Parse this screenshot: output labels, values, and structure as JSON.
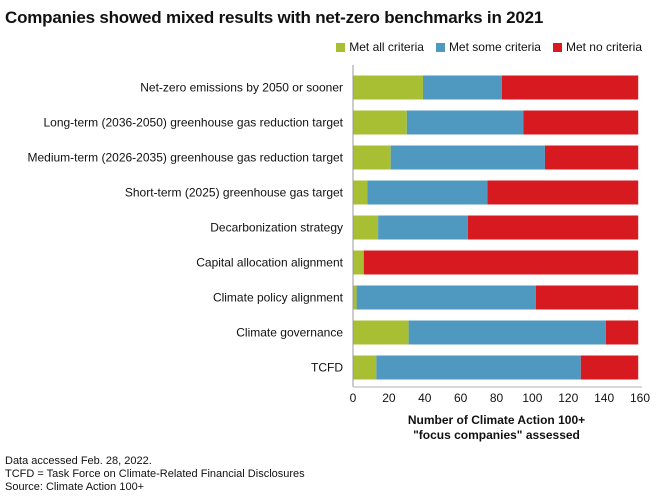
{
  "chart_data": {
    "type": "bar",
    "orientation": "horizontal",
    "stacked": true,
    "title": "Companies showed mixed results with net-zero benchmarks in 2021",
    "categories": [
      "Net-zero emissions by 2050 or sooner",
      "Long-term (2036-2050) greenhouse gas reduction target",
      "Medium-term (2026-2035) greenhouse gas reduction target",
      "Short-term (2025) greenhouse gas target",
      "Decarbonization strategy",
      "Capital allocation alignment",
      "Climate policy alignment",
      "Climate governance",
      "TCFD"
    ],
    "series": [
      {
        "name": "Met all criteria",
        "color": "#a8bf33",
        "values": [
          39,
          30,
          21,
          8,
          14,
          6,
          2,
          31,
          13
        ]
      },
      {
        "name": "Met some criteria",
        "color": "#4f99c1",
        "values": [
          44,
          65,
          86,
          67,
          50,
          0,
          100,
          110,
          114
        ]
      },
      {
        "name": "Met no criteria",
        "color": "#d71920",
        "values": [
          76,
          64,
          52,
          84,
          95,
          153,
          57,
          18,
          32
        ]
      }
    ],
    "xlabel": [
      "Number of Climate Action 100+",
      "\"focus companies\" assessed"
    ],
    "xlim": [
      0,
      160
    ],
    "xticks": [
      0,
      20,
      40,
      60,
      80,
      100,
      120,
      140,
      160
    ],
    "legend_position": "top-right",
    "grid": false
  },
  "notes": [
    "Data accessed Feb. 28, 2022.",
    "TCFD = Task Force on Climate-Related Financial Disclosures",
    "Source: Climate Action 100+"
  ]
}
